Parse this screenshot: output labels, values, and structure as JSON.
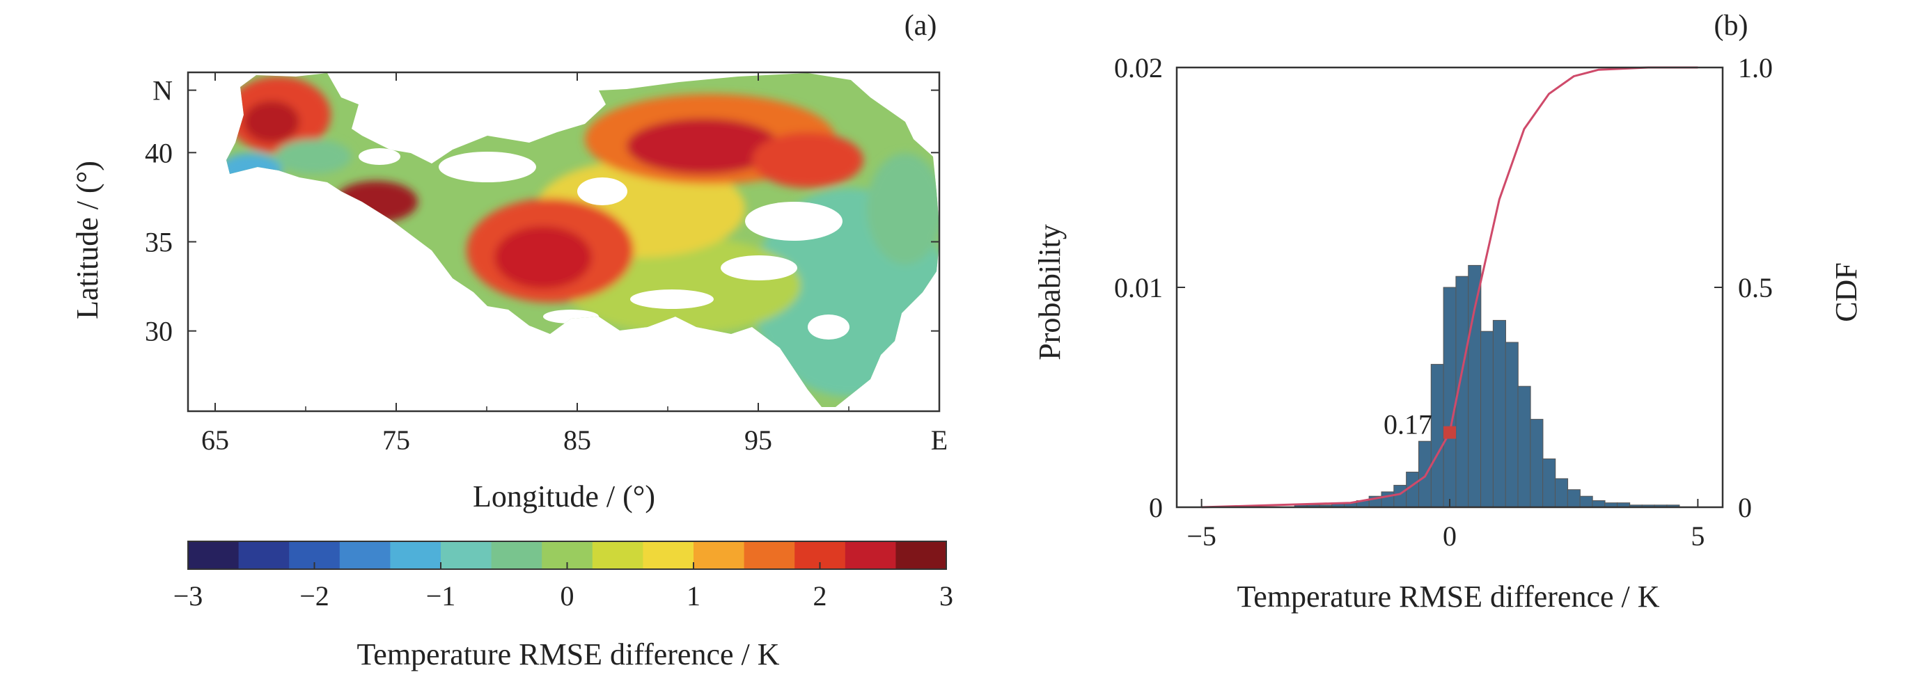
{
  "chart_data": [
    {
      "panel": "(a)",
      "type": "heatmap",
      "subject": "map",
      "xlabel": "Longitude / (°)",
      "ylabel": "Latitude / (°)",
      "xlim": [
        63.5,
        105
      ],
      "ylim": [
        25.5,
        44.5
      ],
      "x_ticks": [
        {
          "value": 65,
          "label": "65"
        },
        {
          "value": 75,
          "label": "75"
        },
        {
          "value": 85,
          "label": "85"
        },
        {
          "value": 95,
          "label": "95"
        },
        {
          "value": 105,
          "label": "E"
        }
      ],
      "y_ticks": [
        {
          "value": 30,
          "label": "30"
        },
        {
          "value": 35,
          "label": "35"
        },
        {
          "value": 40,
          "label": "40"
        },
        {
          "value": 43.5,
          "label": "N"
        }
      ],
      "colorbar": {
        "label": "Temperature RMSE difference / K",
        "range": [
          -3,
          3
        ],
        "ticks": [
          {
            "value": -3,
            "label": "−3"
          },
          {
            "value": -2,
            "label": "−2"
          },
          {
            "value": -1,
            "label": "−1"
          },
          {
            "value": 0,
            "label": "0"
          },
          {
            "value": 1,
            "label": "1"
          },
          {
            "value": 2,
            "label": "2"
          },
          {
            "value": 3,
            "label": "3"
          }
        ],
        "colors": [
          "#26215e",
          "#2a3d94",
          "#2f5cb4",
          "#3f86cd",
          "#4fb0d9",
          "#6ec7b8",
          "#79c48e",
          "#9acc5f",
          "#cfd83a",
          "#f0d83a",
          "#f5a62d",
          "#ec6f24",
          "#de3a22",
          "#c21d2a",
          "#7e1519"
        ]
      },
      "regions": [
        {
          "lon": 71,
          "lat": 41.5,
          "value": 2.4
        },
        {
          "lon": 75,
          "lat": 37,
          "value": 2.8
        },
        {
          "lon": 83.5,
          "lat": 33.5,
          "value": 2.2
        },
        {
          "lon": 91,
          "lat": 40,
          "value": 2.5
        },
        {
          "lon": 96,
          "lat": 40.5,
          "value": 2.1
        },
        {
          "lon": 88,
          "lat": 36,
          "value": 1.0
        },
        {
          "lon": 98.5,
          "lat": 30,
          "value": -0.3
        },
        {
          "lon": 88,
          "lat": 30.5,
          "value": 0.4
        },
        {
          "lon": 68,
          "lat": 38.5,
          "value": -1.2
        }
      ]
    },
    {
      "panel": "(b)",
      "type": "bar",
      "subject": "histogram with CDF",
      "xlabel": "Temperature RMSE difference / K",
      "ylabel": "Probability",
      "y2label": "CDF",
      "xlim": [
        -5.5,
        5.5
      ],
      "ylim": [
        0,
        0.02
      ],
      "y2lim": [
        0,
        1.0
      ],
      "x_ticks": [
        {
          "value": -5,
          "label": "−5"
        },
        {
          "value": 0,
          "label": "0"
        },
        {
          "value": 5,
          "label": "5"
        }
      ],
      "y_ticks": [
        {
          "value": 0,
          "label": "0"
        },
        {
          "value": 0.01,
          "label": "0.01"
        },
        {
          "value": 0.02,
          "label": "0.02"
        }
      ],
      "y2_ticks": [
        {
          "value": 0,
          "label": "0"
        },
        {
          "value": 0.5,
          "label": "0.5"
        },
        {
          "value": 1.0,
          "label": "1.0"
        }
      ],
      "bar_color": "#3d6b8e",
      "cdf_color": "#cf4a6a",
      "bin_centers": [
        -3.0,
        -2.75,
        -2.5,
        -2.25,
        -2.0,
        -1.75,
        -1.5,
        -1.25,
        -1.0,
        -0.75,
        -0.5,
        -0.25,
        0.0,
        0.25,
        0.5,
        0.75,
        1.0,
        1.25,
        1.5,
        1.75,
        2.0,
        2.25,
        2.5,
        2.75,
        3.0,
        3.25,
        3.5,
        3.75,
        4.0,
        4.25,
        4.5
      ],
      "bin_values": [
        0.0001,
        0.0001,
        0.0001,
        0.0002,
        0.0002,
        0.0003,
        0.0005,
        0.0007,
        0.001,
        0.0016,
        0.003,
        0.0065,
        0.01,
        0.0105,
        0.011,
        0.008,
        0.0085,
        0.0075,
        0.0055,
        0.004,
        0.0022,
        0.0013,
        0.0008,
        0.0005,
        0.0003,
        0.0002,
        0.0002,
        0.0001,
        0.0001,
        0.0001,
        0.0001
      ],
      "cdf_x": [
        -5,
        -2,
        -1,
        -0.5,
        0,
        0.5,
        1.0,
        1.5,
        2.0,
        2.5,
        3.0,
        4.0,
        5.0
      ],
      "cdf_y": [
        0,
        0.01,
        0.03,
        0.07,
        0.17,
        0.45,
        0.7,
        0.86,
        0.94,
        0.98,
        0.995,
        1.0,
        1.0
      ],
      "annotation": {
        "label": "0.17",
        "x": 0,
        "y2": 0.17
      }
    }
  ]
}
